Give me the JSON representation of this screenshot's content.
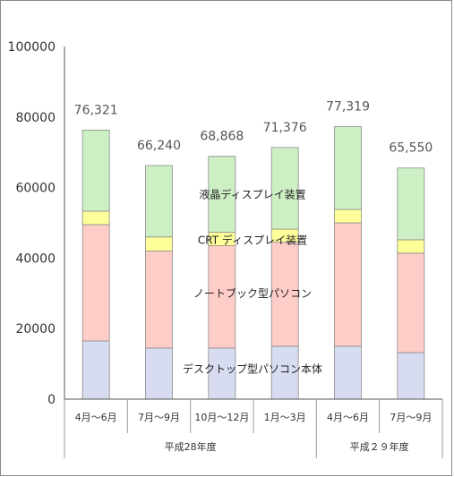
{
  "chart_data": {
    "type": "bar",
    "stacked": true,
    "categories": [
      "4月～6月",
      "7月～9月",
      "10月～12月",
      "1月～3月",
      "4月～6月",
      "7月～9月"
    ],
    "groups": [
      {
        "label": "平成28年度",
        "count": 4
      },
      {
        "label": "平成２９年度",
        "count": 2
      }
    ],
    "series": [
      {
        "name": "デスクトップ型パソコン本体",
        "color": "#d7dcf0",
        "values": [
          16500,
          14500,
          14500,
          15000,
          15000,
          13200
        ]
      },
      {
        "name": "ノートブック型パソコン",
        "color": "#ffcdc8",
        "values": [
          33000,
          27500,
          29000,
          29500,
          35000,
          28200
        ]
      },
      {
        "name": "CRT ディスプレイ装置",
        "color": "#ffff99",
        "values": [
          3800,
          4000,
          3800,
          3700,
          3800,
          3800
        ]
      },
      {
        "name": "液晶ディスプレイ装置",
        "color": "#ccefc4",
        "values": [
          23021,
          20240,
          21568,
          23176,
          23519,
          20350
        ]
      }
    ],
    "totals": [
      "76,321",
      "66,240",
      "68,868",
      "71,376",
      "77,319",
      "65,550"
    ],
    "highlight_index": 5,
    "highlight_color": "#ff0000",
    "ylim": [
      0,
      100000
    ],
    "yticks": [
      "0",
      "20000",
      "40000",
      "60000",
      "80000",
      "100000"
    ],
    "title": "",
    "xlabel": "",
    "ylabel": ""
  }
}
